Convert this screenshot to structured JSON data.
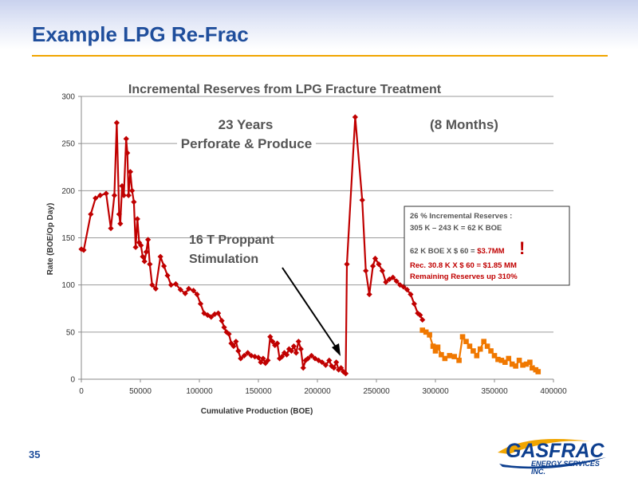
{
  "slide": {
    "title": "Example LPG Re-Frac",
    "page_number": "35"
  },
  "logo": {
    "name": "GASFRAC",
    "subtitle": "ENERGY SERVICES INC.",
    "icon": "gasfrac-swoosh-logo"
  },
  "colors": {
    "title_blue": "#1f4e9c",
    "accent_orange": "#f0a500",
    "series_red": "#c00000",
    "series_orange": "#f07800",
    "annotation_red": "#c00000"
  },
  "chart_data": {
    "type": "line",
    "title": "Incremental Reserves from LPG Fracture Treatment",
    "xlabel": "Cumulative Production (BOE)",
    "ylabel": "Rate (BOE/Op Day)",
    "xlim": [
      0,
      400000
    ],
    "ylim": [
      0,
      300
    ],
    "x_ticks": [
      "0",
      "50000",
      "100000",
      "150000",
      "200000",
      "250000",
      "300000",
      "350000",
      "400000"
    ],
    "y_ticks": [
      "0",
      "50",
      "100",
      "150",
      "200",
      "250",
      "300"
    ],
    "grid": "horizontal",
    "series": [
      {
        "color": "#c00000",
        "marker": "diamond",
        "points": [
          [
            0,
            138
          ],
          [
            2000,
            137
          ],
          [
            8000,
            175
          ],
          [
            12000,
            192
          ],
          [
            16000,
            195
          ],
          [
            21000,
            197
          ],
          [
            25000,
            160
          ],
          [
            28000,
            195
          ],
          [
            30000,
            272
          ],
          [
            32000,
            175
          ],
          [
            33000,
            165
          ],
          [
            34500,
            205
          ],
          [
            36000,
            195
          ],
          [
            38000,
            255
          ],
          [
            39000,
            240
          ],
          [
            40000,
            195
          ],
          [
            41500,
            220
          ],
          [
            43000,
            200
          ],
          [
            44500,
            188
          ],
          [
            46000,
            140
          ],
          [
            47500,
            170
          ],
          [
            49000,
            145
          ],
          [
            50500,
            142
          ],
          [
            52000,
            130
          ],
          [
            53500,
            125
          ],
          [
            55000,
            135
          ],
          [
            56500,
            148
          ],
          [
            58000,
            122
          ],
          [
            60000,
            100
          ],
          [
            63000,
            96
          ],
          [
            67000,
            130
          ],
          [
            70000,
            120
          ],
          [
            73000,
            110
          ],
          [
            76000,
            100
          ],
          [
            80000,
            101
          ],
          [
            84000,
            95
          ],
          [
            88000,
            91
          ],
          [
            91000,
            96
          ],
          [
            95000,
            94
          ],
          [
            98000,
            90
          ],
          [
            101000,
            80
          ],
          [
            104000,
            70
          ],
          [
            107000,
            68
          ],
          [
            110000,
            66
          ],
          [
            113000,
            69
          ],
          [
            116000,
            70
          ],
          [
            119000,
            62
          ],
          [
            121000,
            55
          ],
          [
            123000,
            50
          ],
          [
            125000,
            48
          ],
          [
            127000,
            38
          ],
          [
            129000,
            35
          ],
          [
            131000,
            40
          ],
          [
            133000,
            30
          ],
          [
            135000,
            22
          ],
          [
            138000,
            25
          ],
          [
            141000,
            28
          ],
          [
            144000,
            25
          ],
          [
            147000,
            24
          ],
          [
            150000,
            23
          ],
          [
            152000,
            18
          ],
          [
            154000,
            22
          ],
          [
            156000,
            17
          ],
          [
            158000,
            20
          ],
          [
            160000,
            45
          ],
          [
            162000,
            40
          ],
          [
            164000,
            36
          ],
          [
            166000,
            38
          ],
          [
            168000,
            22
          ],
          [
            170000,
            24
          ],
          [
            172000,
            28
          ],
          [
            174000,
            26
          ],
          [
            176000,
            32
          ],
          [
            178000,
            30
          ],
          [
            180000,
            35
          ],
          [
            182000,
            28
          ],
          [
            184000,
            40
          ],
          [
            186000,
            32
          ],
          [
            188000,
            12
          ],
          [
            190000,
            20
          ],
          [
            192000,
            22
          ],
          [
            195000,
            25
          ],
          [
            198000,
            22
          ],
          [
            201000,
            20
          ],
          [
            204000,
            18
          ],
          [
            207000,
            15
          ],
          [
            210000,
            20
          ],
          [
            212000,
            14
          ],
          [
            214000,
            12
          ],
          [
            216000,
            18
          ],
          [
            218000,
            10
          ],
          [
            220000,
            12
          ],
          [
            222000,
            8
          ],
          [
            224000,
            6
          ],
          [
            225000,
            122
          ],
          [
            232000,
            278
          ],
          [
            238000,
            190
          ],
          [
            241000,
            115
          ],
          [
            244000,
            90
          ],
          [
            247000,
            120
          ],
          [
            249000,
            128
          ],
          [
            252000,
            122
          ],
          [
            255000,
            115
          ],
          [
            258000,
            103
          ],
          [
            261000,
            106
          ],
          [
            264000,
            108
          ],
          [
            267000,
            104
          ],
          [
            270000,
            100
          ],
          [
            273000,
            98
          ],
          [
            276000,
            95
          ],
          [
            279000,
            90
          ],
          [
            282000,
            80
          ],
          [
            285000,
            70
          ],
          [
            287000,
            68
          ],
          [
            289000,
            63
          ]
        ]
      },
      {
        "color": "#f07800",
        "marker": "square",
        "points": [
          [
            289000,
            52
          ],
          [
            292000,
            50
          ],
          [
            295000,
            47
          ],
          [
            298000,
            35
          ],
          [
            300000,
            30
          ],
          [
            302000,
            34
          ],
          [
            305000,
            26
          ],
          [
            308000,
            22
          ],
          [
            312000,
            25
          ],
          [
            316000,
            24
          ],
          [
            320000,
            20
          ],
          [
            323000,
            45
          ],
          [
            326000,
            40
          ],
          [
            329000,
            35
          ],
          [
            332000,
            30
          ],
          [
            335000,
            25
          ],
          [
            338000,
            32
          ],
          [
            341000,
            40
          ],
          [
            344000,
            35
          ],
          [
            347000,
            30
          ],
          [
            350000,
            25
          ],
          [
            353000,
            21
          ],
          [
            356000,
            20
          ],
          [
            359000,
            18
          ],
          [
            362000,
            22
          ],
          [
            365000,
            16
          ],
          [
            368000,
            14
          ],
          [
            371000,
            20
          ],
          [
            374000,
            15
          ],
          [
            377000,
            16
          ],
          [
            380000,
            18
          ],
          [
            382000,
            12
          ],
          [
            385000,
            10
          ],
          [
            387000,
            8
          ]
        ]
      }
    ],
    "annotations": {
      "years": "23 Years",
      "perforate": "Perforate & Produce",
      "months": "(8 Months)",
      "stim_line1": "16 T Proppant",
      "stim_line2": "Stimulation",
      "box_line1": "26 % Incremental Reserves :",
      "box_line2": "305 K – 243 K = 62 K BOE",
      "box_line3_a": "62 K BOE X $ 60 = ",
      "box_line3_b": "$3.7MM",
      "exclamation": "!",
      "box_line4": "Rec. 30.8 K X $ 60 = $1.85 MM",
      "box_line5": "Remaining Reserves up 310%"
    }
  }
}
